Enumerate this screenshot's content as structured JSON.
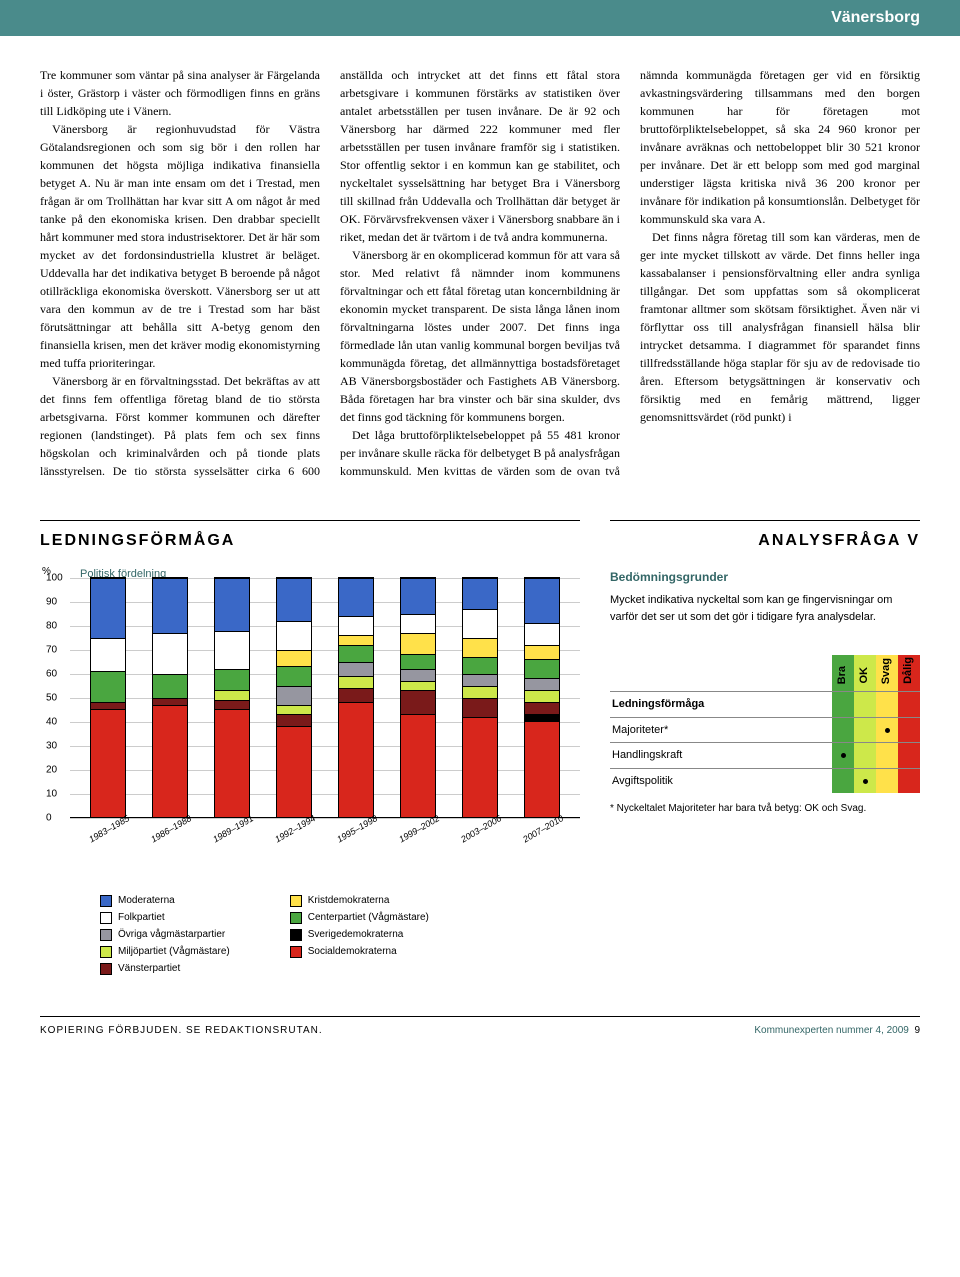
{
  "header": {
    "title": "Vänersborg"
  },
  "body": {
    "paragraphs": [
      "Tre kommuner som väntar på sina analyser är Färgelanda i öster, Grästorp i väster och förmodligen finns en gräns till Lidköping ute i Vänern.",
      "Vänersborg är regionhuvudstad för Västra Götalandsregionen och som sig bör i den rollen har kommunen det högsta möjliga indikativa finansiella betyget A. Nu är man inte ensam om det i Trestad, men frågan är om Trollhättan har kvar sitt A om något år med tanke på den ekonomiska krisen. Den drabbar speciellt hårt kommuner med stora industrisektorer. Det är här som mycket av det fordonsindustriella klustret är beläget. Uddevalla har det indikativa betyget B beroende på något otillräckliga ekonomiska överskott. Vänersborg ser ut att vara den kommun av de tre i Trestad som har bäst förutsättningar att behålla sitt A-betyg genom den finansiella krisen, men det kräver modig ekonomistyrning med tuffa prioriteringar.",
      "Vänersborg är en förvaltningsstad. Det bekräftas av att det finns fem offentliga företag bland de tio största arbetsgivarna. Först kommer kommunen och därefter regionen (landstinget). På plats fem och sex finns högskolan och kriminalvården och på tionde plats länsstyrelsen. De tio största sysselsätter cirka 6 600 anställda och intrycket att det finns ett fåtal stora arbetsgivare i kommunen förstärks av statistiken över antalet arbetsställen per tusen invånare. De är 92 och Vänersborg har därmed 222 kommuner med fler arbetsställen per tusen invånare framför sig i statistiken. Stor offentlig sektor i en kommun kan ge stabilitet, och nyckeltalet sysselsättning har betyget Bra i Vänersborg till skillnad från Uddevalla och Trollhättan där betyget är OK. Förvärvsfrekvensen växer i Vänersborg snabbare än i riket, medan det är tvärtom i de två andra kommunerna.",
      "Vänersborg är en okomplicerad kommun för att vara så stor. Med relativt få nämnder inom kommunens förvaltningar och ett fåtal företag utan koncernbildning är ekonomin mycket transparent. De sista långa lånen inom förvaltningarna löstes under 2007. Det finns inga förmedlade lån utan vanlig kommunal borgen beviljas två kommunägda företag, det allmännyttiga bostadsföretaget AB Vänersborgsbostäder och Fastighets AB Vänersborg. Båda företagen har bra vinster och bär sina skulder, dvs det finns god täckning för kommunens borgen.",
      "Det låga bruttoförpliktelsebeloppet på 55 481 kronor per invånare skulle räcka för delbetyget B på analysfrågan kommunskuld. Men kvittas de värden som de ovan två nämnda kommunägda företagen ger vid en försiktig avkastningsvärdering tillsammans med den borgen kommunen har för företagen mot bruttoförpliktelsebeloppet, så ska 24 960 kronor per invånare avräknas och nettobeloppet blir 30 521 kronor per invånare. Det är ett belopp som med god marginal understiger lägsta kritiska nivå 36 200 kronor per invånare för indikation på konsumtionslån. Delbetyget för kommunskuld ska vara A.",
      "Det finns några företag till som kan värderas, men de ger inte mycket tillskott av värde. Det finns heller inga kassabalanser i pensionsförvaltning eller andra synliga tillgångar. Det som uppfattas som så okomplicerat framtonar alltmer som skötsam försiktighet. Även när vi förflyttar oss till analysfrågan finansiell hälsa blir intrycket detsamma. I diagrammet för sparandet finns tillfredsställande höga staplar för sju av de redovisade tio åren. Eftersom betygsättningen är konservativ och försiktig med en femårig mättrend, ligger genomsnittsvärdet (röd punkt) i"
    ]
  },
  "chart": {
    "section_title": "LEDNINGSFÖRMÅGA",
    "title": "Politisk fördelning",
    "y_unit": "%",
    "ylim": [
      0,
      100
    ],
    "ytick_step": 10,
    "yticks": [
      0,
      10,
      20,
      30,
      40,
      50,
      60,
      70,
      80,
      90,
      100
    ],
    "categories": [
      "1983–1985",
      "1986–1988",
      "1989–1991",
      "1992–1994",
      "1995–1998",
      "1999–2002",
      "2003–2006",
      "2007–2010"
    ],
    "series": [
      {
        "name": "Moderaterna",
        "color": "#3a68c7"
      },
      {
        "name": "Folkpartiet",
        "color": "#ffffff"
      },
      {
        "name": "Övriga vågmästarpartier",
        "color": "#9696a0"
      },
      {
        "name": "Miljöpartiet (Vågmästare)",
        "color": "#cde84a"
      },
      {
        "name": "Vänsterpartiet",
        "color": "#7a1a1a"
      },
      {
        "name": "Kristdemokraterna",
        "color": "#ffe14a"
      },
      {
        "name": "Centerpartiet (Vågmästare)",
        "color": "#4aa640"
      },
      {
        "name": "Sverigedemokraterna",
        "color": "#000000"
      },
      {
        "name": "Socialdemokraterna",
        "color": "#d8261c"
      }
    ],
    "stacks": [
      {
        "Socialdemokraterna": 45,
        "Vänsterpartiet": 3,
        "Centerpartiet (Vågmästare)": 13,
        "Folkpartiet": 14,
        "Moderaterna": 25
      },
      {
        "Socialdemokraterna": 47,
        "Vänsterpartiet": 3,
        "Centerpartiet (Vågmästare)": 10,
        "Folkpartiet": 17,
        "Moderaterna": 23
      },
      {
        "Socialdemokraterna": 45,
        "Vänsterpartiet": 4,
        "Miljöpartiet (Vågmästare)": 4,
        "Centerpartiet (Vågmästare)": 9,
        "Folkpartiet": 16,
        "Moderaterna": 22
      },
      {
        "Socialdemokraterna": 38,
        "Vänsterpartiet": 5,
        "Miljöpartiet (Vågmästare)": 4,
        "Övriga vågmästarpartier": 8,
        "Centerpartiet (Vågmästare)": 8,
        "Kristdemokraterna": 7,
        "Folkpartiet": 12,
        "Moderaterna": 18
      },
      {
        "Socialdemokraterna": 48,
        "Vänsterpartiet": 6,
        "Miljöpartiet (Vågmästare)": 5,
        "Övriga vågmästarpartier": 6,
        "Centerpartiet (Vågmästare)": 7,
        "Kristdemokraterna": 4,
        "Folkpartiet": 8,
        "Moderaterna": 16
      },
      {
        "Socialdemokraterna": 43,
        "Vänsterpartiet": 10,
        "Miljöpartiet (Vågmästare)": 4,
        "Övriga vågmästarpartier": 5,
        "Centerpartiet (Vågmästare)": 6,
        "Kristdemokraterna": 9,
        "Folkpartiet": 8,
        "Moderaterna": 15
      },
      {
        "Socialdemokraterna": 42,
        "Vänsterpartiet": 8,
        "Miljöpartiet (Vågmästare)": 5,
        "Övriga vågmästarpartier": 5,
        "Centerpartiet (Vågmästare)": 7,
        "Kristdemokraterna": 8,
        "Folkpartiet": 12,
        "Moderaterna": 13
      },
      {
        "Socialdemokraterna": 40,
        "Vänsterpartiet": 5,
        "Miljöpartiet (Vågmästare)": 5,
        "Sverigedemokraterna": 3,
        "Övriga vågmästarpartier": 5,
        "Centerpartiet (Vågmästare)": 8,
        "Kristdemokraterna": 6,
        "Folkpartiet": 9,
        "Moderaterna": 19
      }
    ],
    "background_color": "#ffffff",
    "grid_color": "#cccccc"
  },
  "analysis": {
    "section_title": "ANALYSFRÅGA V",
    "bedom_title": "Bedömningsgrunder",
    "bedom_text": "Mycket indikativa nyckeltal som kan ge fingervisningar om varför det ser ut som det gör i tidigare fyra analysdelar.",
    "headers": {
      "bra": "Bra",
      "ok": "OK",
      "svag": "Svag",
      "dalig": "Dålig"
    },
    "colors": {
      "bra": "#4aa640",
      "ok": "#cde84a",
      "svag": "#ffe14a",
      "dalig": "#d8261c"
    },
    "rows": [
      {
        "label": "Ledningsförmåga",
        "bra": false,
        "ok": false,
        "svag": false,
        "dalig": false
      },
      {
        "label": "Majoriteter*",
        "bra": false,
        "ok": false,
        "svag": true,
        "dalig": false
      },
      {
        "label": "Handlingskraft",
        "bra": true,
        "ok": false,
        "svag": false,
        "dalig": false
      },
      {
        "label": "Avgiftspolitik",
        "bra": false,
        "ok": true,
        "svag": false,
        "dalig": false
      }
    ],
    "footnote": "* Nyckeltalet Majoriteter har bara två betyg: OK och Svag."
  },
  "footer": {
    "left": "KOPIERING FÖRBJUDEN. SE REDAKTIONSRUTAN.",
    "right": "Kommunexperten nummer 4, 2009",
    "page": "9"
  }
}
